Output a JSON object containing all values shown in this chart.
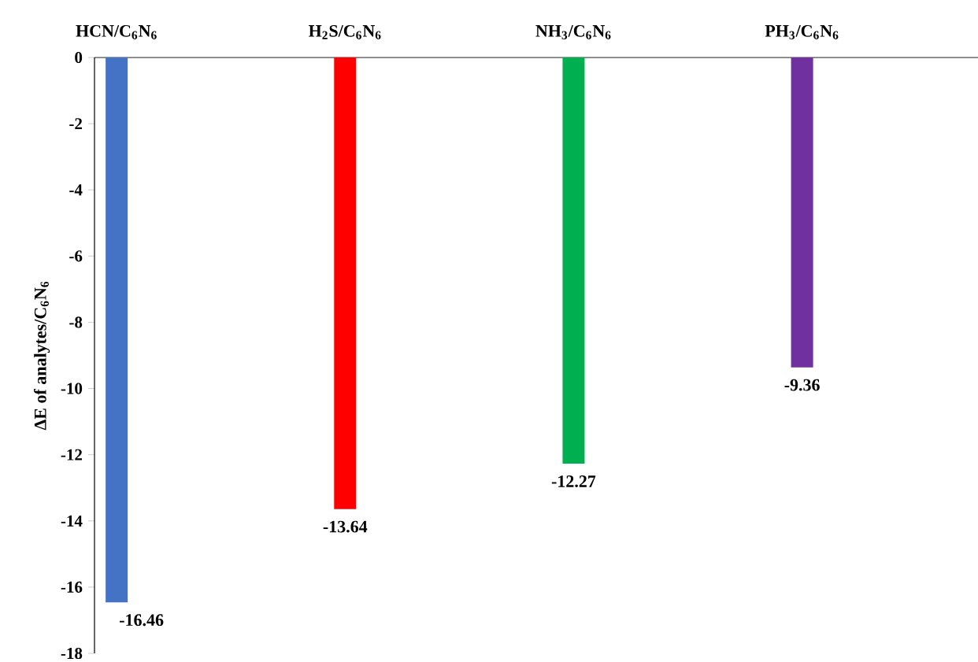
{
  "chart_data": {
    "type": "bar",
    "categories": [
      "HCN/C$_{6}$N$_{6}$",
      "H$_{2}$S/C$_{6}$N$_{6}$",
      "NH$_{3}$/C$_{6}$N$_{6}$",
      "PH$_{3}$/C$_{6}$N$_{6}$"
    ],
    "values": [
      -16.46,
      -13.64,
      -12.27,
      -9.36
    ],
    "colors": [
      "#4472c4",
      "#ff0000",
      "#00b050",
      "#7030a0"
    ],
    "ylabel": "ΔE of analytes/C$_{6}$N$_{6}$",
    "ylim": [
      -18,
      0
    ],
    "yticks": [
      -18,
      -16,
      -14,
      -12,
      -10,
      -8,
      -6,
      -4,
      -2,
      0
    ],
    "data_labels": true
  }
}
